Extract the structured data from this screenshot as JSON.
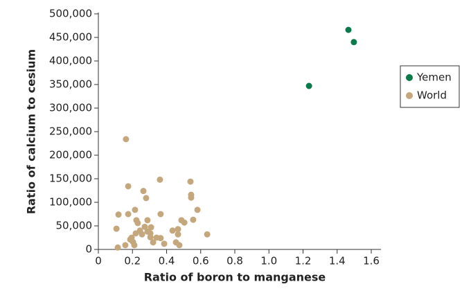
{
  "chart_data": {
    "type": "scatter",
    "x_label": "Ratio of boron to manganese",
    "y_label": "Ratio of calcium to cesium",
    "xlim": [
      0,
      1.6
    ],
    "ylim": [
      0,
      500000
    ],
    "xticks": [
      0,
      0.2,
      0.4,
      0.6,
      0.8,
      {
        "value": 1,
        "label": "1.0"
      },
      1.2,
      1.4,
      1.6
    ],
    "yticks": [
      0,
      {
        "value": 50000,
        "label": "50,000"
      },
      {
        "value": 100000,
        "label": "100,000"
      },
      {
        "value": 150000,
        "label": "150,000"
      },
      {
        "value": 200000,
        "label": "200,000"
      },
      {
        "value": 250000,
        "label": "250,000"
      },
      {
        "value": 300000,
        "label": "300,000"
      },
      {
        "value": 350000,
        "label": "350,000"
      },
      {
        "value": 400000,
        "label": "400,000"
      },
      {
        "value": 450000,
        "label": "450,000"
      },
      {
        "value": 500000,
        "label": "500,000"
      }
    ],
    "legend": "right",
    "series": [
      {
        "name": "Yemen",
        "color": "#0b7a4b",
        "x": [
          1.466,
          1.498,
          1.235
        ],
        "values": [
          466000,
          440000,
          347000
        ]
      },
      {
        "name": "World",
        "color": "#c4a77d",
        "x": [
          0.162,
          0.175,
          0.264,
          0.361,
          0.54,
          0.544,
          0.544,
          0.28,
          0.581,
          0.215,
          0.118,
          0.175,
          0.365,
          0.556,
          0.223,
          0.288,
          0.487,
          0.504,
          0.231,
          0.106,
          0.272,
          0.309,
          0.435,
          0.467,
          0.638,
          0.244,
          0.288,
          0.219,
          0.256,
          0.305,
          0.341,
          0.365,
          0.467,
          0.195,
          0.187,
          0.305,
          0.321,
          0.386,
          0.455,
          0.475,
          0.158,
          0.211,
          0.114,
          0.203
        ],
        "values": [
          234000,
          134000,
          124000,
          148000,
          144000,
          116000,
          110000,
          109000,
          84000,
          84000,
          74000,
          75000,
          75000,
          63000,
          62000,
          62000,
          62000,
          57000,
          56000,
          44000,
          48000,
          47000,
          40000,
          43000,
          32000,
          40000,
          38000,
          34000,
          32000,
          34000,
          25000,
          24000,
          32000,
          25000,
          21000,
          26000,
          15000,
          12000,
          15000,
          9000,
          9000,
          9000,
          4000,
          16000
        ]
      }
    ]
  }
}
